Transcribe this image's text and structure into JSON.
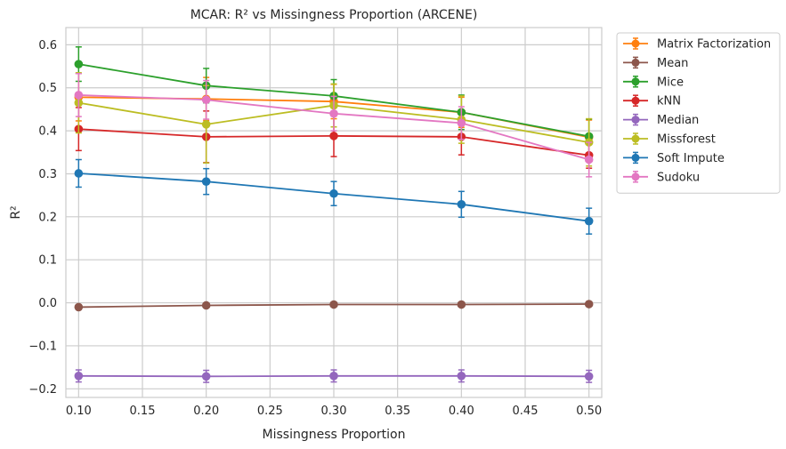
{
  "chart_data": {
    "type": "line",
    "title": "MCAR: R² vs Missingness Proportion (ARCENE)",
    "xlabel": "Missingness Proportion",
    "ylabel": "R²",
    "x": [
      0.1,
      0.2,
      0.3,
      0.4,
      0.5
    ],
    "xlim": [
      0.09,
      0.51
    ],
    "ylim": [
      -0.22,
      0.64
    ],
    "xticks": [
      0.1,
      0.15,
      0.2,
      0.25,
      0.3,
      0.35,
      0.4,
      0.45,
      0.5
    ],
    "xtick_labels": [
      "0.10",
      "0.15",
      "0.20",
      "0.25",
      "0.30",
      "0.35",
      "0.40",
      "0.45",
      "0.50"
    ],
    "yticks": [
      -0.2,
      -0.1,
      0.0,
      0.1,
      0.2,
      0.3,
      0.4,
      0.5,
      0.6
    ],
    "ytick_labels": [
      "−0.2",
      "−0.1",
      "0.0",
      "0.1",
      "0.2",
      "0.3",
      "0.4",
      "0.5",
      "0.6"
    ],
    "grid": true,
    "legend_position": "outside-upper-right",
    "series": [
      {
        "name": "Matrix Factorization",
        "color": "#ff7f0e",
        "values": [
          0.478,
          0.474,
          0.468,
          0.443,
          0.385
        ],
        "errors": [
          0.055,
          0.05,
          0.04,
          0.035,
          0.04
        ]
      },
      {
        "name": "Mean",
        "color": "#8c564b",
        "values": [
          -0.01,
          -0.006,
          -0.004,
          -0.004,
          -0.003
        ],
        "errors": [
          0.003,
          0.003,
          0.003,
          0.003,
          0.003
        ]
      },
      {
        "name": "Mice",
        "color": "#2ca02c",
        "values": [
          0.555,
          0.505,
          0.481,
          0.443,
          0.387
        ],
        "errors": [
          0.04,
          0.04,
          0.038,
          0.04,
          0.04
        ]
      },
      {
        "name": "kNN",
        "color": "#d62728",
        "values": [
          0.404,
          0.386,
          0.388,
          0.386,
          0.343
        ],
        "errors": [
          0.05,
          0.06,
          0.048,
          0.042,
          0.03
        ]
      },
      {
        "name": "Median",
        "color": "#9467bd",
        "values": [
          -0.17,
          -0.171,
          -0.17,
          -0.17,
          -0.171
        ],
        "errors": [
          0.014,
          0.014,
          0.014,
          0.014,
          0.014
        ]
      },
      {
        "name": "Missforest",
        "color": "#bcbd22",
        "values": [
          0.465,
          0.415,
          0.459,
          0.426,
          0.373
        ],
        "errors": [
          0.07,
          0.09,
          0.05,
          0.055,
          0.055
        ]
      },
      {
        "name": "Soft Impute",
        "color": "#1f77b4",
        "values": [
          0.301,
          0.282,
          0.254,
          0.229,
          0.19
        ],
        "errors": [
          0.032,
          0.03,
          0.028,
          0.03,
          0.03
        ]
      },
      {
        "name": "Sudoku",
        "color": "#e377c2",
        "values": [
          0.483,
          0.472,
          0.44,
          0.418,
          0.333
        ],
        "errors": [
          0.05,
          0.045,
          0.04,
          0.038,
          0.04
        ]
      }
    ]
  }
}
